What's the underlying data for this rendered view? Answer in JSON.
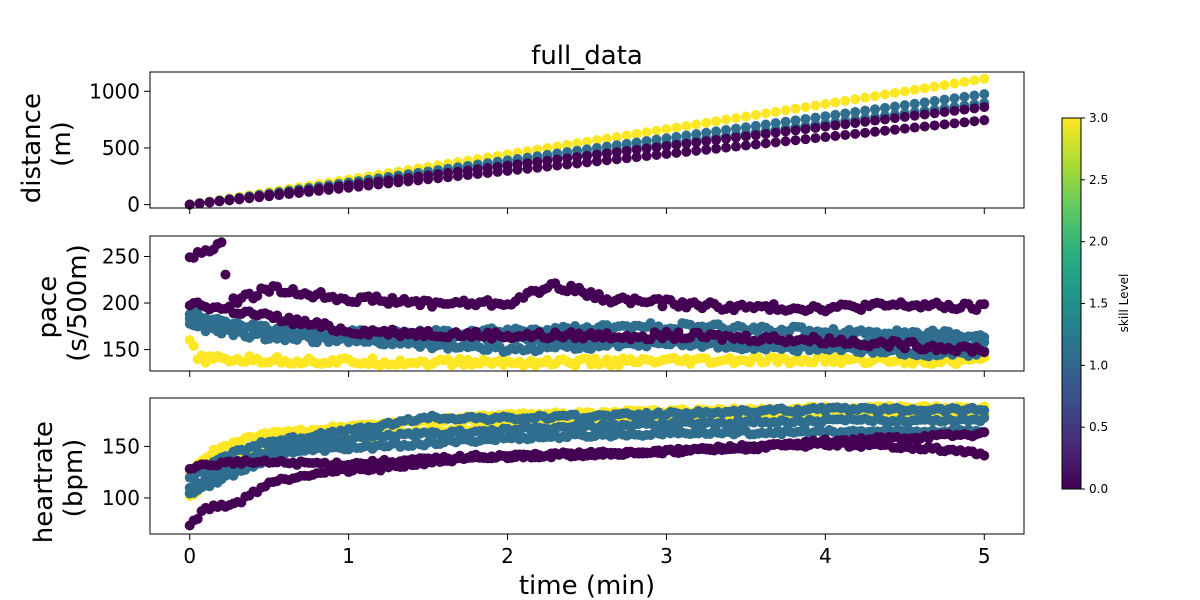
{
  "chart_data": {
    "type": "scatter",
    "title": "full_data",
    "xlabel": "time (min)",
    "x_ticks": [
      "0",
      "1",
      "2",
      "3",
      "4",
      "5"
    ],
    "xlim": [
      -0.25,
      5.25
    ],
    "panels": [
      {
        "name": "distance",
        "ylabel_line1": "distance",
        "ylabel_line2": "(m)",
        "ylim": [
          -30,
          1170
        ],
        "y_ticks": [
          0,
          500,
          1000
        ],
        "series": [
          {
            "skill": 3,
            "color": "#fde725",
            "points": [
              [
                0,
                0
              ],
              [
                5,
                1110
              ]
            ]
          },
          {
            "skill": 1,
            "color": "#2f6e8e",
            "points": [
              [
                0,
                0
              ],
              [
                5,
                975
              ]
            ]
          },
          {
            "skill": 1,
            "color": "#2f6e8e",
            "points": [
              [
                0,
                0
              ],
              [
                5,
                895
              ]
            ]
          },
          {
            "skill": 0,
            "color": "#440154",
            "points": [
              [
                0,
                0
              ],
              [
                5,
                860
              ]
            ]
          },
          {
            "skill": 0,
            "color": "#440154",
            "points": [
              [
                0,
                0
              ],
              [
                5,
                745
              ]
            ]
          }
        ]
      },
      {
        "name": "pace",
        "ylabel_line1": "pace",
        "ylabel_line2": "(s/500m)",
        "ylim": [
          127,
          272
        ],
        "y_ticks": [
          150,
          200,
          250
        ],
        "series": [
          {
            "skill": 3,
            "color": "#fde725",
            "points": [
              [
                0,
                160
              ],
              [
                0.05,
                140
              ],
              [
                1,
                137
              ],
              [
                2,
                136
              ],
              [
                3,
                137
              ],
              [
                4,
                139
              ],
              [
                5,
                138
              ]
            ]
          },
          {
            "skill": 1,
            "color": "#2f6e8e",
            "points": [
              [
                0,
                190
              ],
              [
                0.3,
                175
              ],
              [
                1,
                165
              ],
              [
                2,
                170
              ],
              [
                3,
                175
              ],
              [
                4,
                170
              ],
              [
                5,
                165
              ]
            ]
          },
          {
            "skill": 1,
            "color": "#2f6e8e",
            "points": [
              [
                0,
                175
              ],
              [
                0.4,
                165
              ],
              [
                1,
                160
              ],
              [
                2,
                150
              ],
              [
                3,
                158
              ],
              [
                4,
                150
              ],
              [
                5,
                145
              ]
            ]
          },
          {
            "skill": 1,
            "color": "#2f6e8e",
            "points": [
              [
                0,
                185
              ],
              [
                0.5,
                170
              ],
              [
                1.5,
                165
              ],
              [
                2.5,
                160
              ],
              [
                3.5,
                155
              ],
              [
                4.5,
                160
              ],
              [
                5,
                155
              ]
            ]
          },
          {
            "skill": 0,
            "color": "#440154",
            "points": [
              [
                0,
                250
              ],
              [
                0.1,
                255
              ],
              [
                0.2,
                262
              ],
              [
                0.25,
                200
              ],
              [
                0.5,
                215
              ],
              [
                1,
                205
              ],
              [
                1.5,
                200
              ],
              [
                2,
                200
              ],
              [
                2.3,
                220
              ],
              [
                2.6,
                205
              ],
              [
                3,
                200
              ],
              [
                3.5,
                195
              ],
              [
                4,
                195
              ],
              [
                4.5,
                198
              ],
              [
                5,
                195
              ]
            ]
          },
          {
            "skill": 0,
            "color": "#440154",
            "points": [
              [
                0,
                200
              ],
              [
                0.5,
                185
              ],
              [
                1,
                170
              ],
              [
                2,
                165
              ],
              [
                3,
                165
              ],
              [
                4,
                160
              ],
              [
                5,
                150
              ]
            ]
          }
        ]
      },
      {
        "name": "heartrate",
        "ylabel_line1": "heartrate",
        "ylabel_line2": "(bpm)",
        "ylim": [
          65,
          197
        ],
        "y_ticks": [
          100,
          150
        ],
        "series": [
          {
            "skill": 3,
            "color": "#fde725",
            "points": [
              [
                0,
                125
              ],
              [
                0.15,
                145
              ],
              [
                0.4,
                160
              ],
              [
                1,
                170
              ],
              [
                2,
                180
              ],
              [
                3,
                184
              ],
              [
                4,
                187
              ],
              [
                5,
                188
              ]
            ]
          },
          {
            "skill": 3,
            "color": "#fde725",
            "points": [
              [
                0,
                100
              ],
              [
                0.2,
                130
              ],
              [
                0.5,
                150
              ],
              [
                1,
                158
              ],
              [
                2,
                170
              ],
              [
                3,
                175
              ],
              [
                4,
                178
              ],
              [
                5,
                182
              ]
            ]
          },
          {
            "skill": 1,
            "color": "#2f6e8e",
            "points": [
              [
                0,
                118
              ],
              [
                0.2,
                140
              ],
              [
                0.5,
                155
              ],
              [
                1,
                165
              ],
              [
                1.5,
                178
              ],
              [
                2,
                177
              ],
              [
                3,
                182
              ],
              [
                4,
                186
              ],
              [
                5,
                186
              ]
            ]
          },
          {
            "skill": 1,
            "color": "#2f6e8e",
            "points": [
              [
                0,
                110
              ],
              [
                0.3,
                135
              ],
              [
                0.6,
                150
              ],
              [
                1.2,
                160
              ],
              [
                2,
                166
              ],
              [
                3,
                172
              ],
              [
                4,
                175
              ],
              [
                5,
                176
              ]
            ]
          },
          {
            "skill": 1,
            "color": "#2f6e8e",
            "points": [
              [
                0,
                105
              ],
              [
                0.3,
                125
              ],
              [
                0.6,
                145
              ],
              [
                1.2,
                150
              ],
              [
                2,
                158
              ],
              [
                3,
                163
              ],
              [
                4,
                164
              ],
              [
                5,
                165
              ]
            ]
          },
          {
            "skill": 0,
            "color": "#440154",
            "points": [
              [
                0,
                73
              ],
              [
                0.1,
                90
              ],
              [
                0.3,
                95
              ],
              [
                0.5,
                115
              ],
              [
                0.8,
                125
              ],
              [
                1.2,
                128
              ],
              [
                1.5,
                135
              ],
              [
                2,
                140
              ],
              [
                3,
                145
              ],
              [
                3.5,
                148
              ],
              [
                4,
                155
              ],
              [
                5,
                162
              ]
            ]
          },
          {
            "skill": 0,
            "color": "#440154",
            "points": [
              [
                0,
                130
              ],
              [
                0.3,
                135
              ],
              [
                1,
                133
              ],
              [
                1.8,
                140
              ],
              [
                2.5,
                143
              ],
              [
                3,
                145
              ],
              [
                3.5,
                150
              ],
              [
                4,
                152
              ],
              [
                4.5,
                150
              ],
              [
                5,
                143
              ]
            ]
          }
        ]
      }
    ],
    "colorbar": {
      "label": "skill Level",
      "range": [
        0.0,
        3.0
      ],
      "ticks": [
        "0.0",
        "0.5",
        "1.0",
        "1.5",
        "2.0",
        "2.5",
        "3.0"
      ],
      "colormap": [
        "#440154",
        "#472c7a",
        "#3b518b",
        "#2c718e",
        "#21908d",
        "#27ad81",
        "#5cc863",
        "#aadc32",
        "#fde725"
      ]
    }
  }
}
